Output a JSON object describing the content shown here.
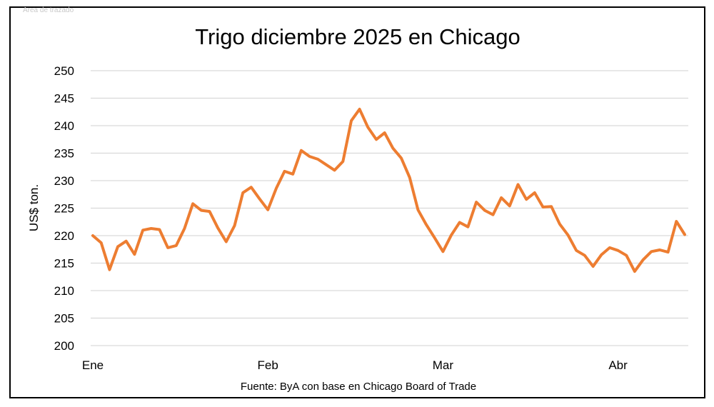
{
  "corner_label": "Área de trazado",
  "source_note": "Fuente: ByA con base en Chicago Board of Trade",
  "colors": {
    "series": "#ed7d31",
    "grid": "#d9d9d9",
    "frame": "#000000"
  },
  "chart_data": {
    "type": "line",
    "title": "Trigo diciembre 2025 en Chicago",
    "ylabel": "US$ ton.",
    "xlabel": "",
    "ylim": [
      200,
      250
    ],
    "y_ticks": [
      200,
      205,
      210,
      215,
      220,
      225,
      230,
      235,
      240,
      245,
      250
    ],
    "x_ticks": [
      {
        "label": "Ene",
        "index": 0
      },
      {
        "label": "Feb",
        "index": 21
      },
      {
        "label": "Mar",
        "index": 42
      },
      {
        "label": "Abr",
        "index": 63
      }
    ],
    "grid": true,
    "legend": "none",
    "series": [
      {
        "values": [
          220.0,
          218.7,
          213.8,
          218.0,
          219.0,
          216.6,
          221.0,
          221.3,
          221.1,
          217.8,
          218.2,
          221.3,
          225.8,
          224.6,
          224.4,
          221.4,
          218.9,
          221.8,
          227.8,
          228.8,
          226.7,
          224.7,
          228.6,
          231.7,
          231.2,
          235.5,
          234.4,
          233.9,
          232.9,
          231.9,
          233.5,
          240.9,
          243.0,
          239.7,
          237.5,
          238.7,
          235.9,
          234.1,
          230.6,
          224.7,
          222.0,
          219.6,
          217.1,
          220.1,
          222.4,
          221.6,
          226.1,
          224.6,
          223.8,
          226.9,
          225.4,
          229.3,
          226.6,
          227.8,
          225.2,
          225.3,
          222.1,
          220.1,
          217.3,
          216.4,
          214.4,
          216.5,
          217.8,
          217.3,
          216.4,
          213.5,
          215.6,
          217.1,
          217.4,
          217.0,
          222.6,
          220.2
        ]
      }
    ]
  }
}
